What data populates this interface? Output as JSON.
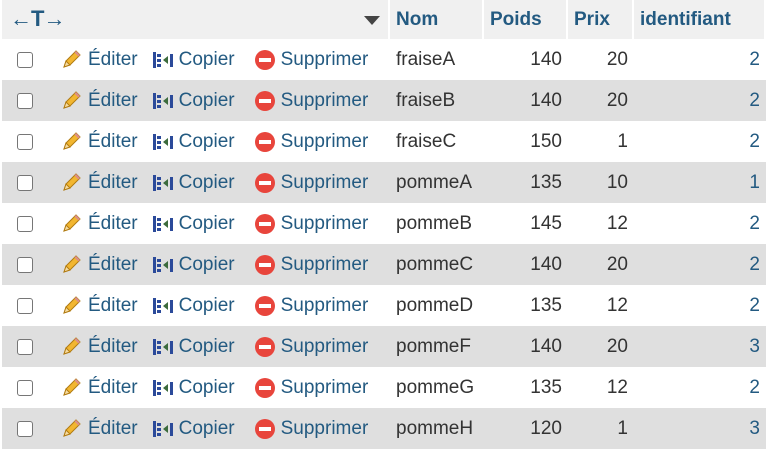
{
  "header": {
    "arrows": "←T→",
    "columns": [
      "Nom",
      "Poids",
      "Prix",
      "identifiant"
    ]
  },
  "actions": {
    "edit": "Éditer",
    "copy": "Copier",
    "delete": "Supprimer"
  },
  "rows": [
    {
      "nom": "fraiseA",
      "poids": "140",
      "prix": "20",
      "id": "2"
    },
    {
      "nom": "fraiseB",
      "poids": "140",
      "prix": "20",
      "id": "2"
    },
    {
      "nom": "fraiseC",
      "poids": "150",
      "prix": "1",
      "id": "2"
    },
    {
      "nom": "pommeA",
      "poids": "135",
      "prix": "10",
      "id": "1"
    },
    {
      "nom": "pommeB",
      "poids": "145",
      "prix": "12",
      "id": "2"
    },
    {
      "nom": "pommeC",
      "poids": "140",
      "prix": "20",
      "id": "2"
    },
    {
      "nom": "pommeD",
      "poids": "135",
      "prix": "12",
      "id": "2"
    },
    {
      "nom": "pommeF",
      "poids": "140",
      "prix": "20",
      "id": "3"
    },
    {
      "nom": "pommeG",
      "poids": "135",
      "prix": "12",
      "id": "2"
    },
    {
      "nom": "pommeH",
      "poids": "120",
      "prix": "1",
      "id": "3"
    }
  ]
}
